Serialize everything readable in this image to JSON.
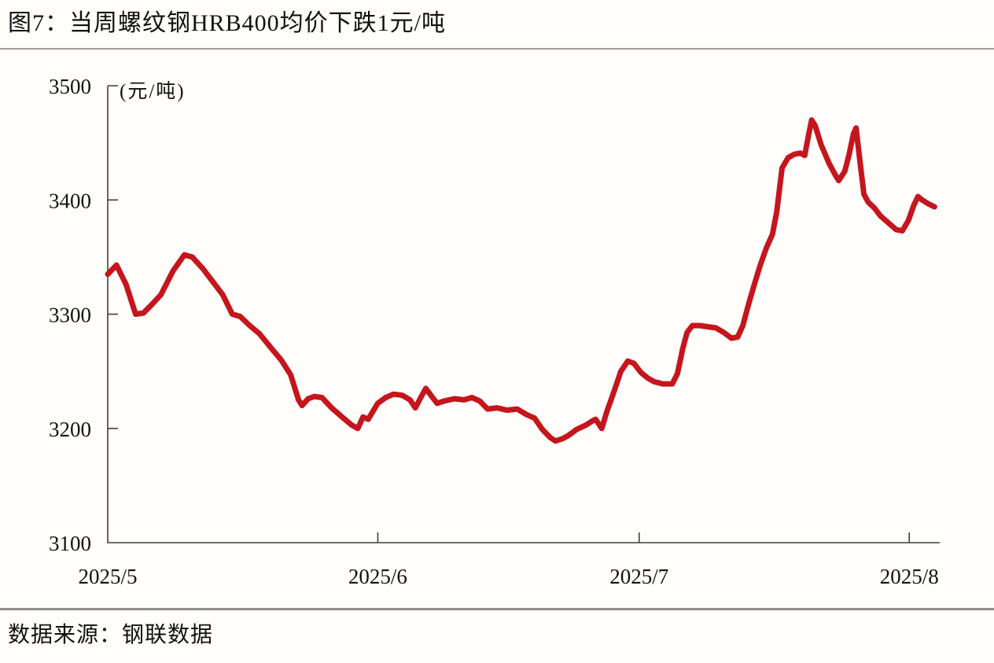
{
  "figure": {
    "title": "图7：当周螺纹钢HRB400均价下跌1元/吨",
    "unit_label": "(元/吨)",
    "source": "数据来源：钢联数据"
  },
  "colors": {
    "line": "#c5161d",
    "axis": "#3f3f3f",
    "text": "#111111",
    "rule": "#9e9e9e",
    "background": "#fffefa"
  },
  "chart_data": {
    "type": "line",
    "title": "当周螺纹钢HRB400均价下跌1元/吨",
    "xlabel": "",
    "ylabel": "元/吨",
    "ylim": [
      3100,
      3500
    ],
    "y_ticks": [
      3500,
      3400,
      3300,
      3200,
      3100
    ],
    "x_range": [
      0,
      95.5
    ],
    "x_ticks": [
      {
        "pos": 0,
        "label": "2025/5"
      },
      {
        "pos": 31,
        "label": "2025/6"
      },
      {
        "pos": 61,
        "label": "2025/7"
      },
      {
        "pos": 92,
        "label": "2025/8"
      }
    ],
    "grid": false,
    "legend_position": "none",
    "series": [
      {
        "name": "螺纹钢HRB400均价",
        "color": "#c5161d",
        "points": [
          [
            0,
            3335
          ],
          [
            1,
            3343
          ],
          [
            2.1,
            3326
          ],
          [
            3.2,
            3300
          ],
          [
            4.1,
            3301
          ],
          [
            5,
            3308
          ],
          [
            6.1,
            3317
          ],
          [
            7.5,
            3338
          ],
          [
            8.8,
            3352
          ],
          [
            9.7,
            3350
          ],
          [
            10.9,
            3340
          ],
          [
            12.2,
            3327
          ],
          [
            13.2,
            3317
          ],
          [
            14.3,
            3300
          ],
          [
            15.2,
            3298
          ],
          [
            16.3,
            3290
          ],
          [
            17.4,
            3283
          ],
          [
            18.8,
            3270
          ],
          [
            19.9,
            3260
          ],
          [
            21,
            3247
          ],
          [
            21.9,
            3225
          ],
          [
            22.3,
            3220
          ],
          [
            23,
            3226
          ],
          [
            23.7,
            3228
          ],
          [
            24.6,
            3227
          ],
          [
            25.7,
            3218
          ],
          [
            26.9,
            3210
          ],
          [
            28,
            3203
          ],
          [
            28.7,
            3200
          ],
          [
            29.3,
            3210
          ],
          [
            29.9,
            3208
          ],
          [
            31,
            3222
          ],
          [
            31.9,
            3227
          ],
          [
            32.8,
            3230
          ],
          [
            33.8,
            3229
          ],
          [
            34.7,
            3225
          ],
          [
            35.3,
            3218
          ],
          [
            36,
            3228
          ],
          [
            36.5,
            3235
          ],
          [
            37.2,
            3228
          ],
          [
            37.8,
            3222
          ],
          [
            38.6,
            3224
          ],
          [
            39.8,
            3226
          ],
          [
            40.9,
            3225
          ],
          [
            41.8,
            3227
          ],
          [
            42.7,
            3224
          ],
          [
            43.6,
            3217
          ],
          [
            44.7,
            3218
          ],
          [
            45.8,
            3216
          ],
          [
            47,
            3217
          ],
          [
            48.1,
            3212
          ],
          [
            49,
            3209
          ],
          [
            49.9,
            3199
          ],
          [
            50.8,
            3192
          ],
          [
            51.4,
            3189
          ],
          [
            52.2,
            3191
          ],
          [
            52.9,
            3194
          ],
          [
            53.8,
            3199
          ],
          [
            54.9,
            3203
          ],
          [
            55.5,
            3206
          ],
          [
            56,
            3208
          ],
          [
            56.7,
            3200
          ],
          [
            57.3,
            3215
          ],
          [
            58,
            3230
          ],
          [
            58.9,
            3250
          ],
          [
            59.7,
            3259
          ],
          [
            60.4,
            3257
          ],
          [
            61.2,
            3249
          ],
          [
            62,
            3244
          ],
          [
            62.7,
            3241
          ],
          [
            63.7,
            3239
          ],
          [
            64.8,
            3239
          ],
          [
            65.4,
            3248
          ],
          [
            66,
            3270
          ],
          [
            66.5,
            3284
          ],
          [
            67.1,
            3290
          ],
          [
            68,
            3290
          ],
          [
            68.9,
            3289
          ],
          [
            69.8,
            3288
          ],
          [
            70.7,
            3284
          ],
          [
            71.6,
            3279
          ],
          [
            72.3,
            3280
          ],
          [
            72.9,
            3290
          ],
          [
            73.6,
            3310
          ],
          [
            74.3,
            3328
          ],
          [
            74.9,
            3343
          ],
          [
            75.6,
            3358
          ],
          [
            76.3,
            3370
          ],
          [
            76.8,
            3390
          ],
          [
            77.4,
            3428
          ],
          [
            78.1,
            3437
          ],
          [
            78.8,
            3440
          ],
          [
            79.5,
            3441
          ],
          [
            80,
            3439
          ],
          [
            80.4,
            3455
          ],
          [
            80.8,
            3470
          ],
          [
            81.2,
            3465
          ],
          [
            81.9,
            3448
          ],
          [
            82.8,
            3432
          ],
          [
            83.5,
            3422
          ],
          [
            83.9,
            3417
          ],
          [
            84.6,
            3425
          ],
          [
            85.1,
            3440
          ],
          [
            85.6,
            3458
          ],
          [
            85.9,
            3463
          ],
          [
            86.4,
            3430
          ],
          [
            86.8,
            3405
          ],
          [
            87.3,
            3398
          ],
          [
            88,
            3393
          ],
          [
            88.7,
            3386
          ],
          [
            89.6,
            3380
          ],
          [
            90.5,
            3374
          ],
          [
            91.2,
            3373
          ],
          [
            91.9,
            3382
          ],
          [
            92.5,
            3395
          ],
          [
            93,
            3403
          ],
          [
            93.5,
            3400
          ],
          [
            94.1,
            3397
          ],
          [
            94.9,
            3394
          ]
        ]
      }
    ]
  }
}
